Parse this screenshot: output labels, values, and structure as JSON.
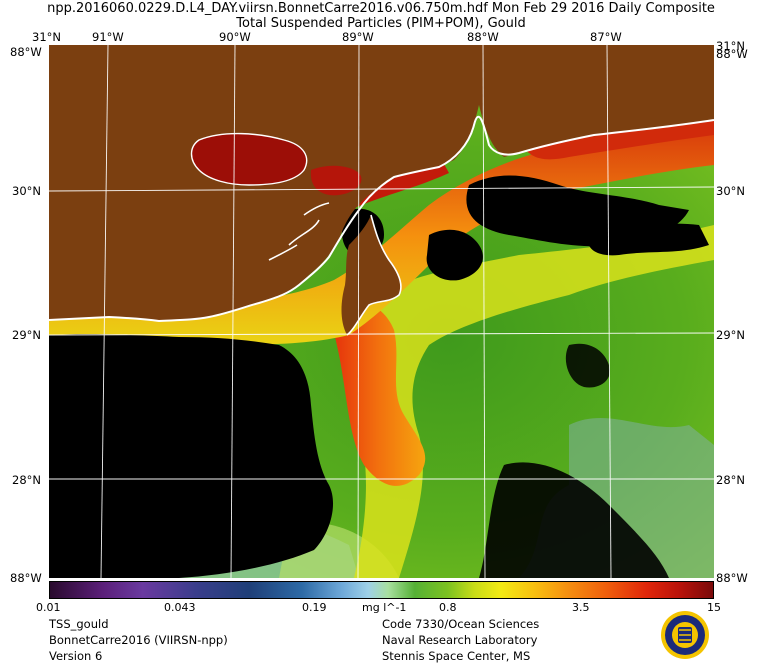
{
  "title": {
    "line1": "npp.2016060.0229.D.L4_DAY.viirsn.BonnetCarre2016.v06.750m.hdf    Mon Feb 29 2016 Daily Composite",
    "line2": "Total Suspended Particles (PIM+POM), Gould"
  },
  "map": {
    "lon_top": [
      "91°W",
      "90°W",
      "89°W",
      "88°W",
      "87°W"
    ],
    "lat_corner_top": "31°N",
    "lat_left": [
      "30°N",
      "29°N",
      "28°N"
    ],
    "lat_right": [
      "30°N",
      "29°N",
      "28°N"
    ],
    "lat_corner_right_top": "31°N",
    "edge_left_top": "88°W",
    "edge_right_top": "88°W",
    "edge_left_bottom": "88°W",
    "edge_right_bottom": "88°W",
    "colors": {
      "land": "#7b3f10",
      "no_data": "#000000",
      "coast": "#ffffff",
      "grid": "#ffffff"
    }
  },
  "colorbar": {
    "ticks": [
      "0.01",
      "0.043",
      "0.19",
      "0.8",
      "3.5",
      "15"
    ],
    "unit": "mg l^-1",
    "scale": "log",
    "range": [
      0.01,
      15
    ]
  },
  "footer": {
    "left": [
      "TSS_gould",
      "BonnetCarre2016 (VIIRSN-npp)",
      "Version 6"
    ],
    "center": [
      "Code 7330/Ocean Sciences",
      "Naval Research Laboratory",
      "Stennis Space Center, MS"
    ]
  },
  "seal_icon": "navy-seal-icon"
}
